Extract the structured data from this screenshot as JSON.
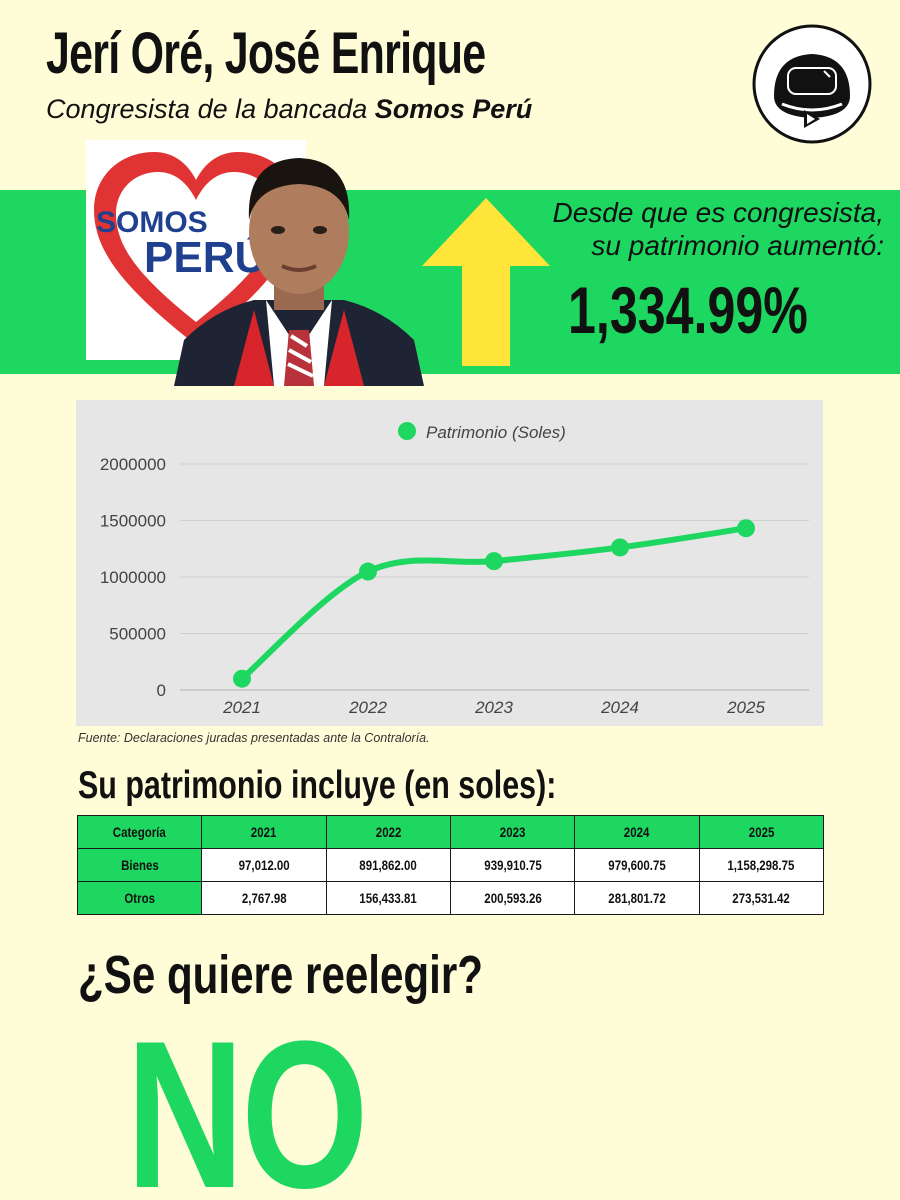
{
  "header": {
    "name": "Jerí Oré, José Enrique",
    "subtitle_prefix": "Congresista de la bancada ",
    "subtitle_party": "Somos Perú"
  },
  "party_logo": {
    "line1": "SOMOS",
    "line2": "PERÚ"
  },
  "highlight": {
    "line1": "Desde que es congresista,",
    "line2": "su patrimonio aumentó:",
    "percent": "1,334.99%"
  },
  "colors": {
    "accent": "#1ED760",
    "arrow": "#FFE43A",
    "background": "#FFFDD8"
  },
  "chart_data": {
    "type": "line",
    "x": [
      "2021",
      "2022",
      "2023",
      "2024",
      "2025"
    ],
    "series": [
      {
        "name": "Patrimonio (Soles)",
        "values": [
          99780,
          1048296,
          1140504,
          1261402,
          1431830
        ]
      }
    ],
    "ylim": [
      0,
      2000000
    ],
    "yticks": [
      "0",
      "500000",
      "1000000",
      "1500000",
      "2000000"
    ],
    "legend": "top-center",
    "grid": true
  },
  "source": "Fuente: Declaraciones juradas presentadas ante la Contraloría.",
  "table": {
    "title": "Su patrimonio incluye (en soles):",
    "headers": [
      "Categoría",
      "2021",
      "2022",
      "2023",
      "2024",
      "2025"
    ],
    "rows": [
      [
        "Bienes",
        "97,012.00",
        "891,862.00",
        "939,910.75",
        "979,600.75",
        "1,158,298.75"
      ],
      [
        "Otros",
        "2,767.98",
        "156,433.81",
        "200,593.26",
        "281,801.72",
        "273,531.42"
      ]
    ]
  },
  "question": "¿Se quiere reelegir?",
  "answer": "NO"
}
